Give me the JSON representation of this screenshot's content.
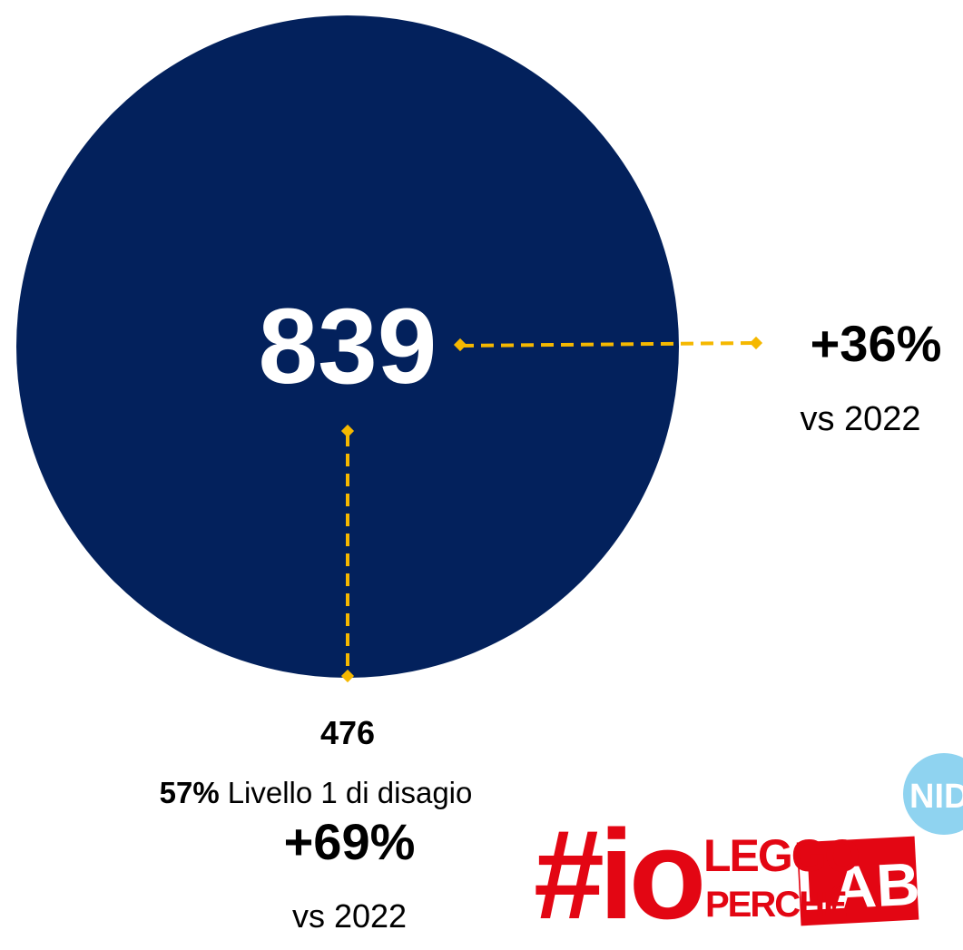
{
  "main": {
    "value": "839"
  },
  "right": {
    "change": "+36%",
    "note": "vs 2022"
  },
  "bottom": {
    "count": "476",
    "share": "57%",
    "label": "Livello 1 di disagio",
    "change": "+69%",
    "note": "vs 2022"
  },
  "logo": {
    "hash": "#io",
    "top": "LEGGO",
    "bottom": "PERCHÉ",
    "lab": "LAB",
    "badge": "NIDI"
  }
}
